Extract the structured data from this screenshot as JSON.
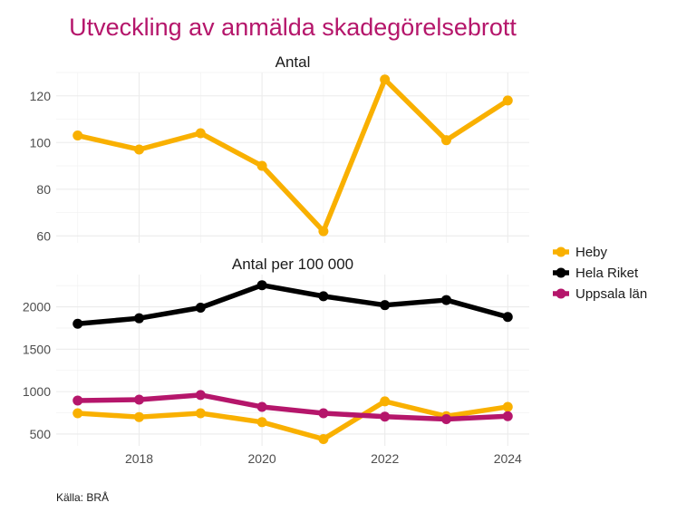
{
  "chart_data": {
    "type": "line",
    "title": "Utveckling av anmälda skadegörelsebrott",
    "caption": "Källa: BRÅ",
    "legend_position": "right",
    "colors": {
      "title": "#b5166b",
      "Heby": "#f9b000",
      "Hela Riket": "#000000",
      "Uppsala län": "#b5166b"
    },
    "x": [
      2017,
      2018,
      2019,
      2020,
      2021,
      2022,
      2023,
      2024
    ],
    "x_ticks": [
      "2018",
      "2020",
      "2022",
      "2024"
    ],
    "x_tick_values": [
      2018,
      2020,
      2022,
      2024
    ],
    "legend": [
      "Heby",
      "Hela Riket",
      "Uppsala län"
    ],
    "grid": true,
    "panels": [
      {
        "title": "Antal",
        "ylim": [
          57,
          130
        ],
        "y_ticks": [
          60,
          80,
          100,
          120
        ],
        "y_minor": [
          70,
          90,
          110,
          130
        ],
        "series": [
          {
            "name": "Heby",
            "values": [
              103,
              97,
              104,
              90,
              62,
              127,
              101,
              118
            ]
          }
        ]
      },
      {
        "title": "Antal per 100 000",
        "ylim": [
          360,
          2380
        ],
        "y_ticks": [
          500,
          1000,
          1500,
          2000
        ],
        "y_minor": [
          750,
          1250,
          1750,
          2250
        ],
        "series": [
          {
            "name": "Heby",
            "values": [
              745,
              700,
              745,
              640,
              440,
              885,
              710,
              820
            ]
          },
          {
            "name": "Hela Riket",
            "values": [
              1800,
              1865,
              1990,
              2255,
              2125,
              2020,
              2080,
              1880
            ]
          },
          {
            "name": "Uppsala län",
            "values": [
              895,
              905,
              960,
              820,
              745,
              705,
              675,
              710
            ]
          }
        ]
      }
    ]
  }
}
